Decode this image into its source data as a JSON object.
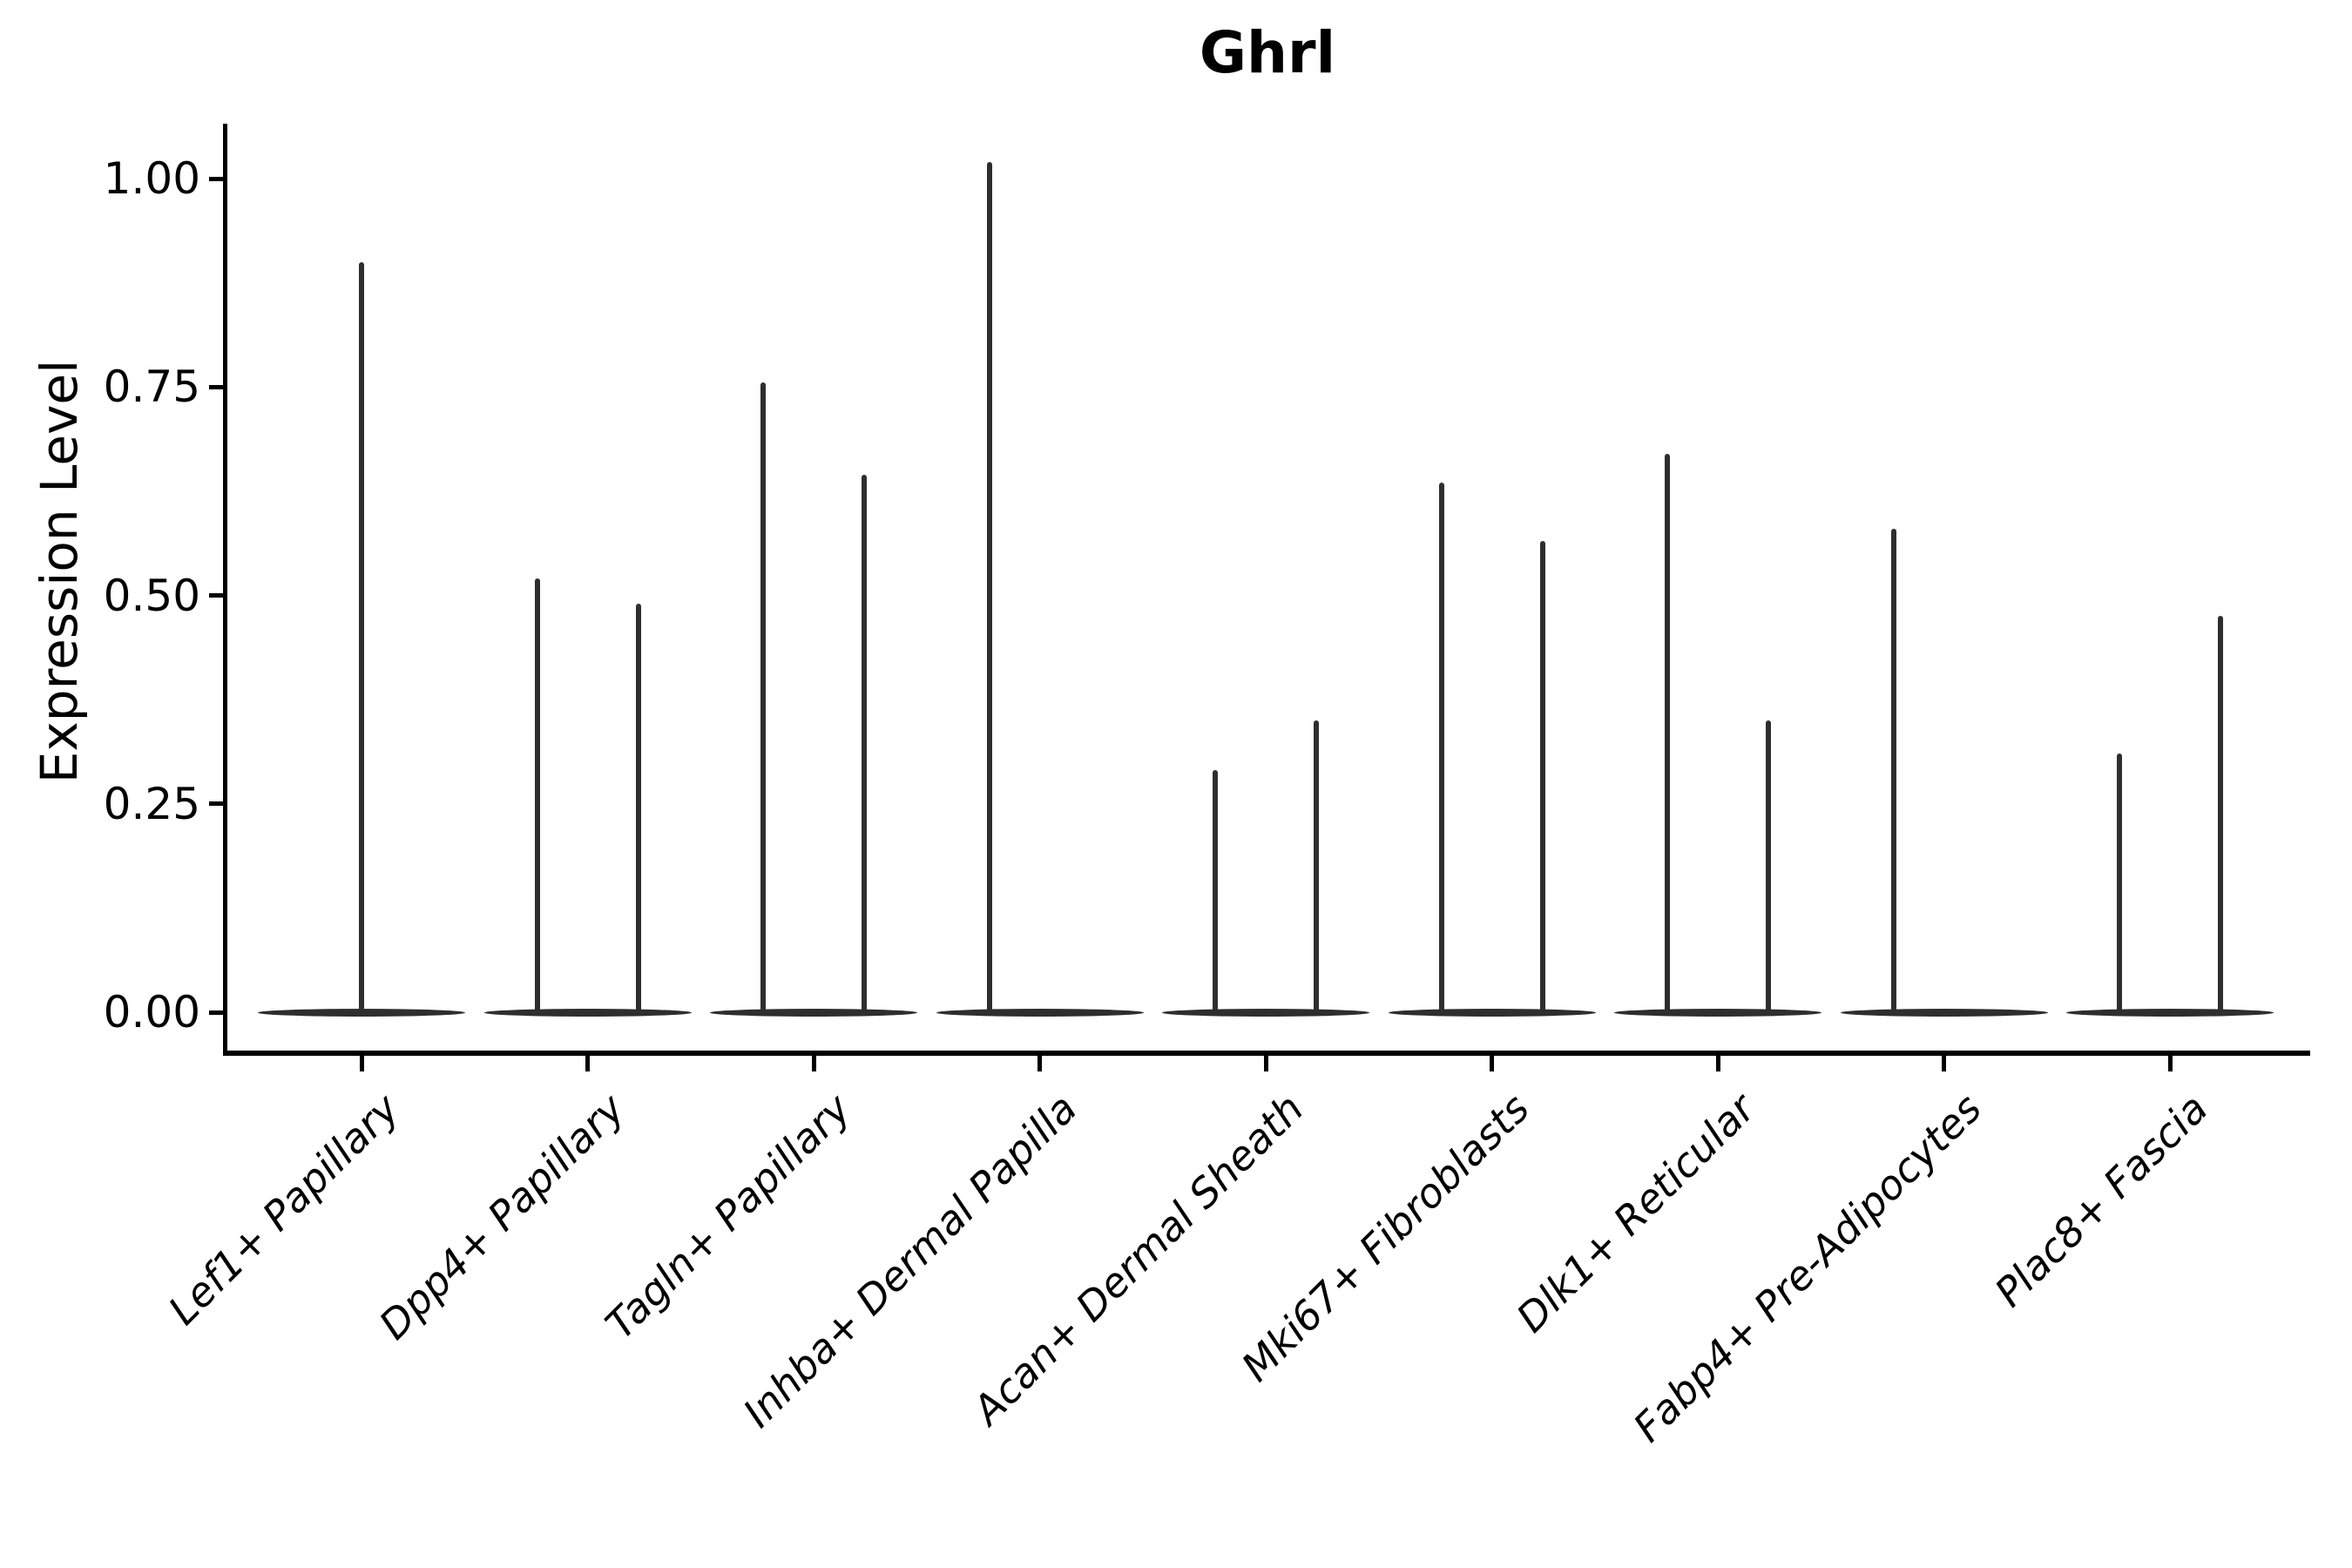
{
  "chart_data": {
    "type": "violin",
    "title": "Ghrl",
    "ylabel": "Expression Level",
    "xlabel": "",
    "ylim": [
      -0.05,
      1.065
    ],
    "grid": false,
    "legend": "none",
    "yticks": [
      {
        "label": "0.00",
        "value": 0.0
      },
      {
        "label": "0.25",
        "value": 0.25
      },
      {
        "label": "0.50",
        "value": 0.5
      },
      {
        "label": "0.75",
        "value": 0.75
      },
      {
        "label": "1.00",
        "value": 1.0
      }
    ],
    "violin_color": "#2e2e2e",
    "axis_color": "#000000",
    "note": "Each cell type shows violin(s) collapsed to a flat baseline at 0 with thin density spikes; spike value = top of density tail (expression level).",
    "categories": [
      {
        "label": "Lef1+ Papillary",
        "spikes": [
          {
            "pos": "center",
            "value": 0.9
          }
        ]
      },
      {
        "label": "Dpp4+ Papillary",
        "spikes": [
          {
            "pos": "left",
            "value": 0.52
          },
          {
            "pos": "right",
            "value": 0.49
          }
        ]
      },
      {
        "label": "Tagln+ Papillary",
        "spikes": [
          {
            "pos": "left",
            "value": 0.755
          },
          {
            "pos": "right",
            "value": 0.645
          }
        ]
      },
      {
        "label": "Inhba+ Dermal Papilla",
        "spikes": [
          {
            "pos": "left",
            "value": 1.02
          }
        ]
      },
      {
        "label": "Acan+ Dermal Sheath",
        "spikes": [
          {
            "pos": "left",
            "value": 0.29
          },
          {
            "pos": "right",
            "value": 0.35
          }
        ]
      },
      {
        "label": "Mki67+ Fibroblasts",
        "spikes": [
          {
            "pos": "left",
            "value": 0.635
          },
          {
            "pos": "right",
            "value": 0.565
          }
        ]
      },
      {
        "label": "Dlk1+ Reticular",
        "spikes": [
          {
            "pos": "left",
            "value": 0.67
          },
          {
            "pos": "right",
            "value": 0.35
          }
        ]
      },
      {
        "label": "Fabp4+ Pre-Adipocytes",
        "spikes": [
          {
            "pos": "left",
            "value": 0.58
          }
        ]
      },
      {
        "label": "Plac8+ Fascia",
        "spikes": [
          {
            "pos": "left",
            "value": 0.31
          },
          {
            "pos": "right",
            "value": 0.475
          }
        ]
      }
    ]
  }
}
